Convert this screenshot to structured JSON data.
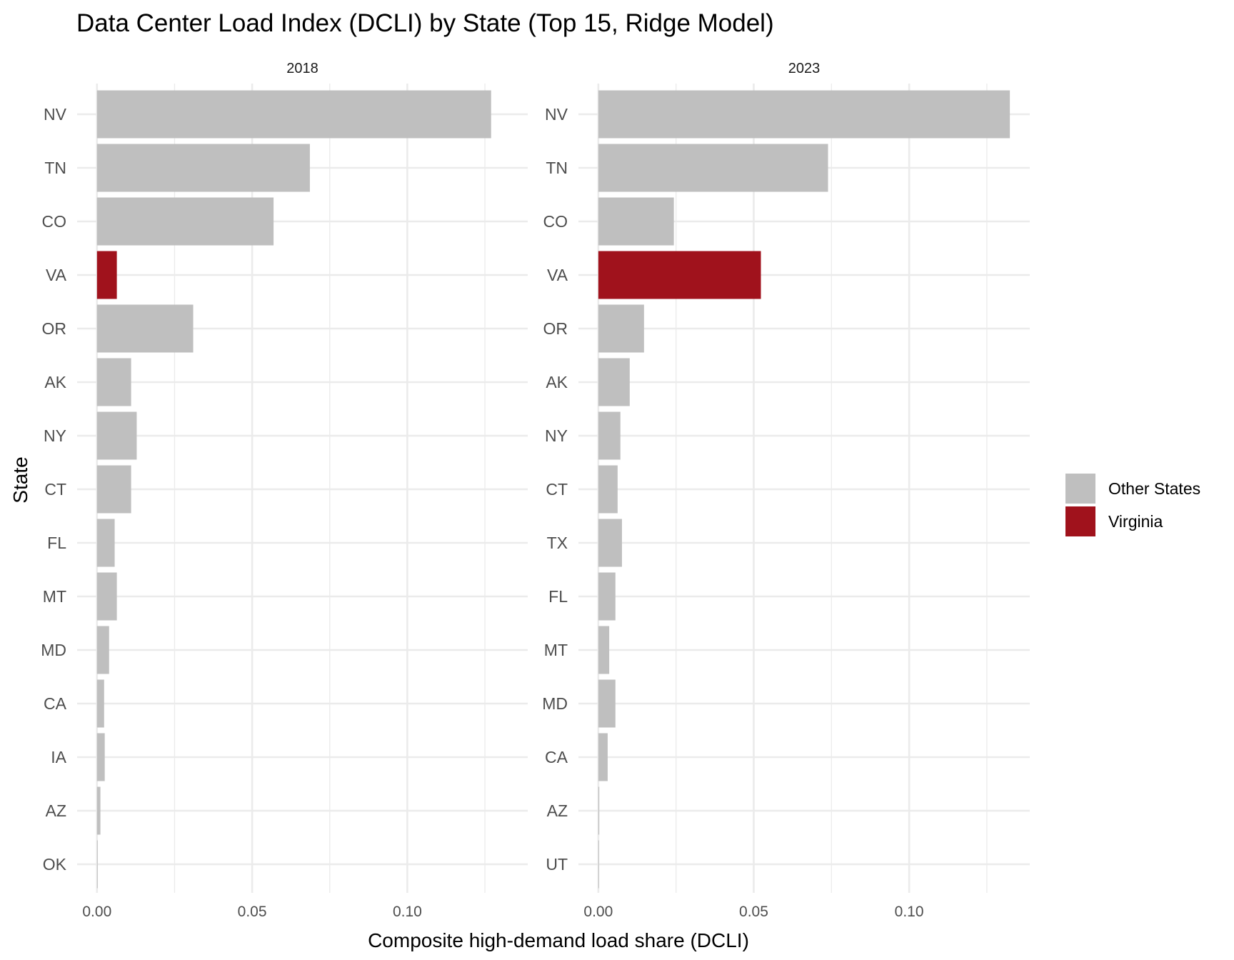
{
  "chart_data": {
    "type": "bar",
    "orientation": "horizontal",
    "title": "Data Center Load Index (DCLI) by State (Top 15, Ridge Model)",
    "xlabel": "Composite high-demand load share (DCLI)",
    "ylabel": "State",
    "xlim": [
      -0.0064,
      0.1388
    ],
    "x_ticks": [
      0.0,
      0.05,
      0.1
    ],
    "x_tick_labels": [
      "0.00",
      "0.05",
      "0.10"
    ],
    "x_minor_ticks": [
      0.025,
      0.075,
      0.125
    ],
    "grid": true,
    "legend": {
      "position": "right",
      "entries": [
        {
          "label": "Other States",
          "color": "#BFBFBF"
        },
        {
          "label": "Virginia",
          "color": "#A0121C"
        }
      ]
    },
    "panels": [
      {
        "facet": "2018",
        "categories": [
          "NV",
          "TN",
          "CO",
          "VA",
          "OR",
          "AK",
          "NY",
          "CT",
          "FL",
          "MT",
          "MD",
          "CA",
          "IA",
          "AZ",
          "OK"
        ],
        "values": [
          0.127,
          0.0686,
          0.0569,
          0.0064,
          0.031,
          0.011,
          0.0128,
          0.011,
          0.0057,
          0.0064,
          0.0039,
          0.0023,
          0.0025,
          0.0011,
          0.0002
        ],
        "groups": [
          "Other States",
          "Other States",
          "Other States",
          "Virginia",
          "Other States",
          "Other States",
          "Other States",
          "Other States",
          "Other States",
          "Other States",
          "Other States",
          "Other States",
          "Other States",
          "Other States",
          "Other States"
        ]
      },
      {
        "facet": "2023",
        "categories": [
          "NV",
          "TN",
          "CO",
          "VA",
          "OR",
          "AK",
          "NY",
          "CT",
          "TX",
          "FL",
          "MT",
          "MD",
          "CA",
          "AZ",
          "UT"
        ],
        "values": [
          0.1324,
          0.0739,
          0.0243,
          0.0523,
          0.0147,
          0.0101,
          0.0071,
          0.0062,
          0.0076,
          0.0055,
          0.0035,
          0.0055,
          0.003,
          0.0003,
          0.0001
        ],
        "groups": [
          "Other States",
          "Other States",
          "Other States",
          "Virginia",
          "Other States",
          "Other States",
          "Other States",
          "Other States",
          "Other States",
          "Other States",
          "Other States",
          "Other States",
          "Other States",
          "Other States",
          "Other States"
        ]
      }
    ]
  }
}
